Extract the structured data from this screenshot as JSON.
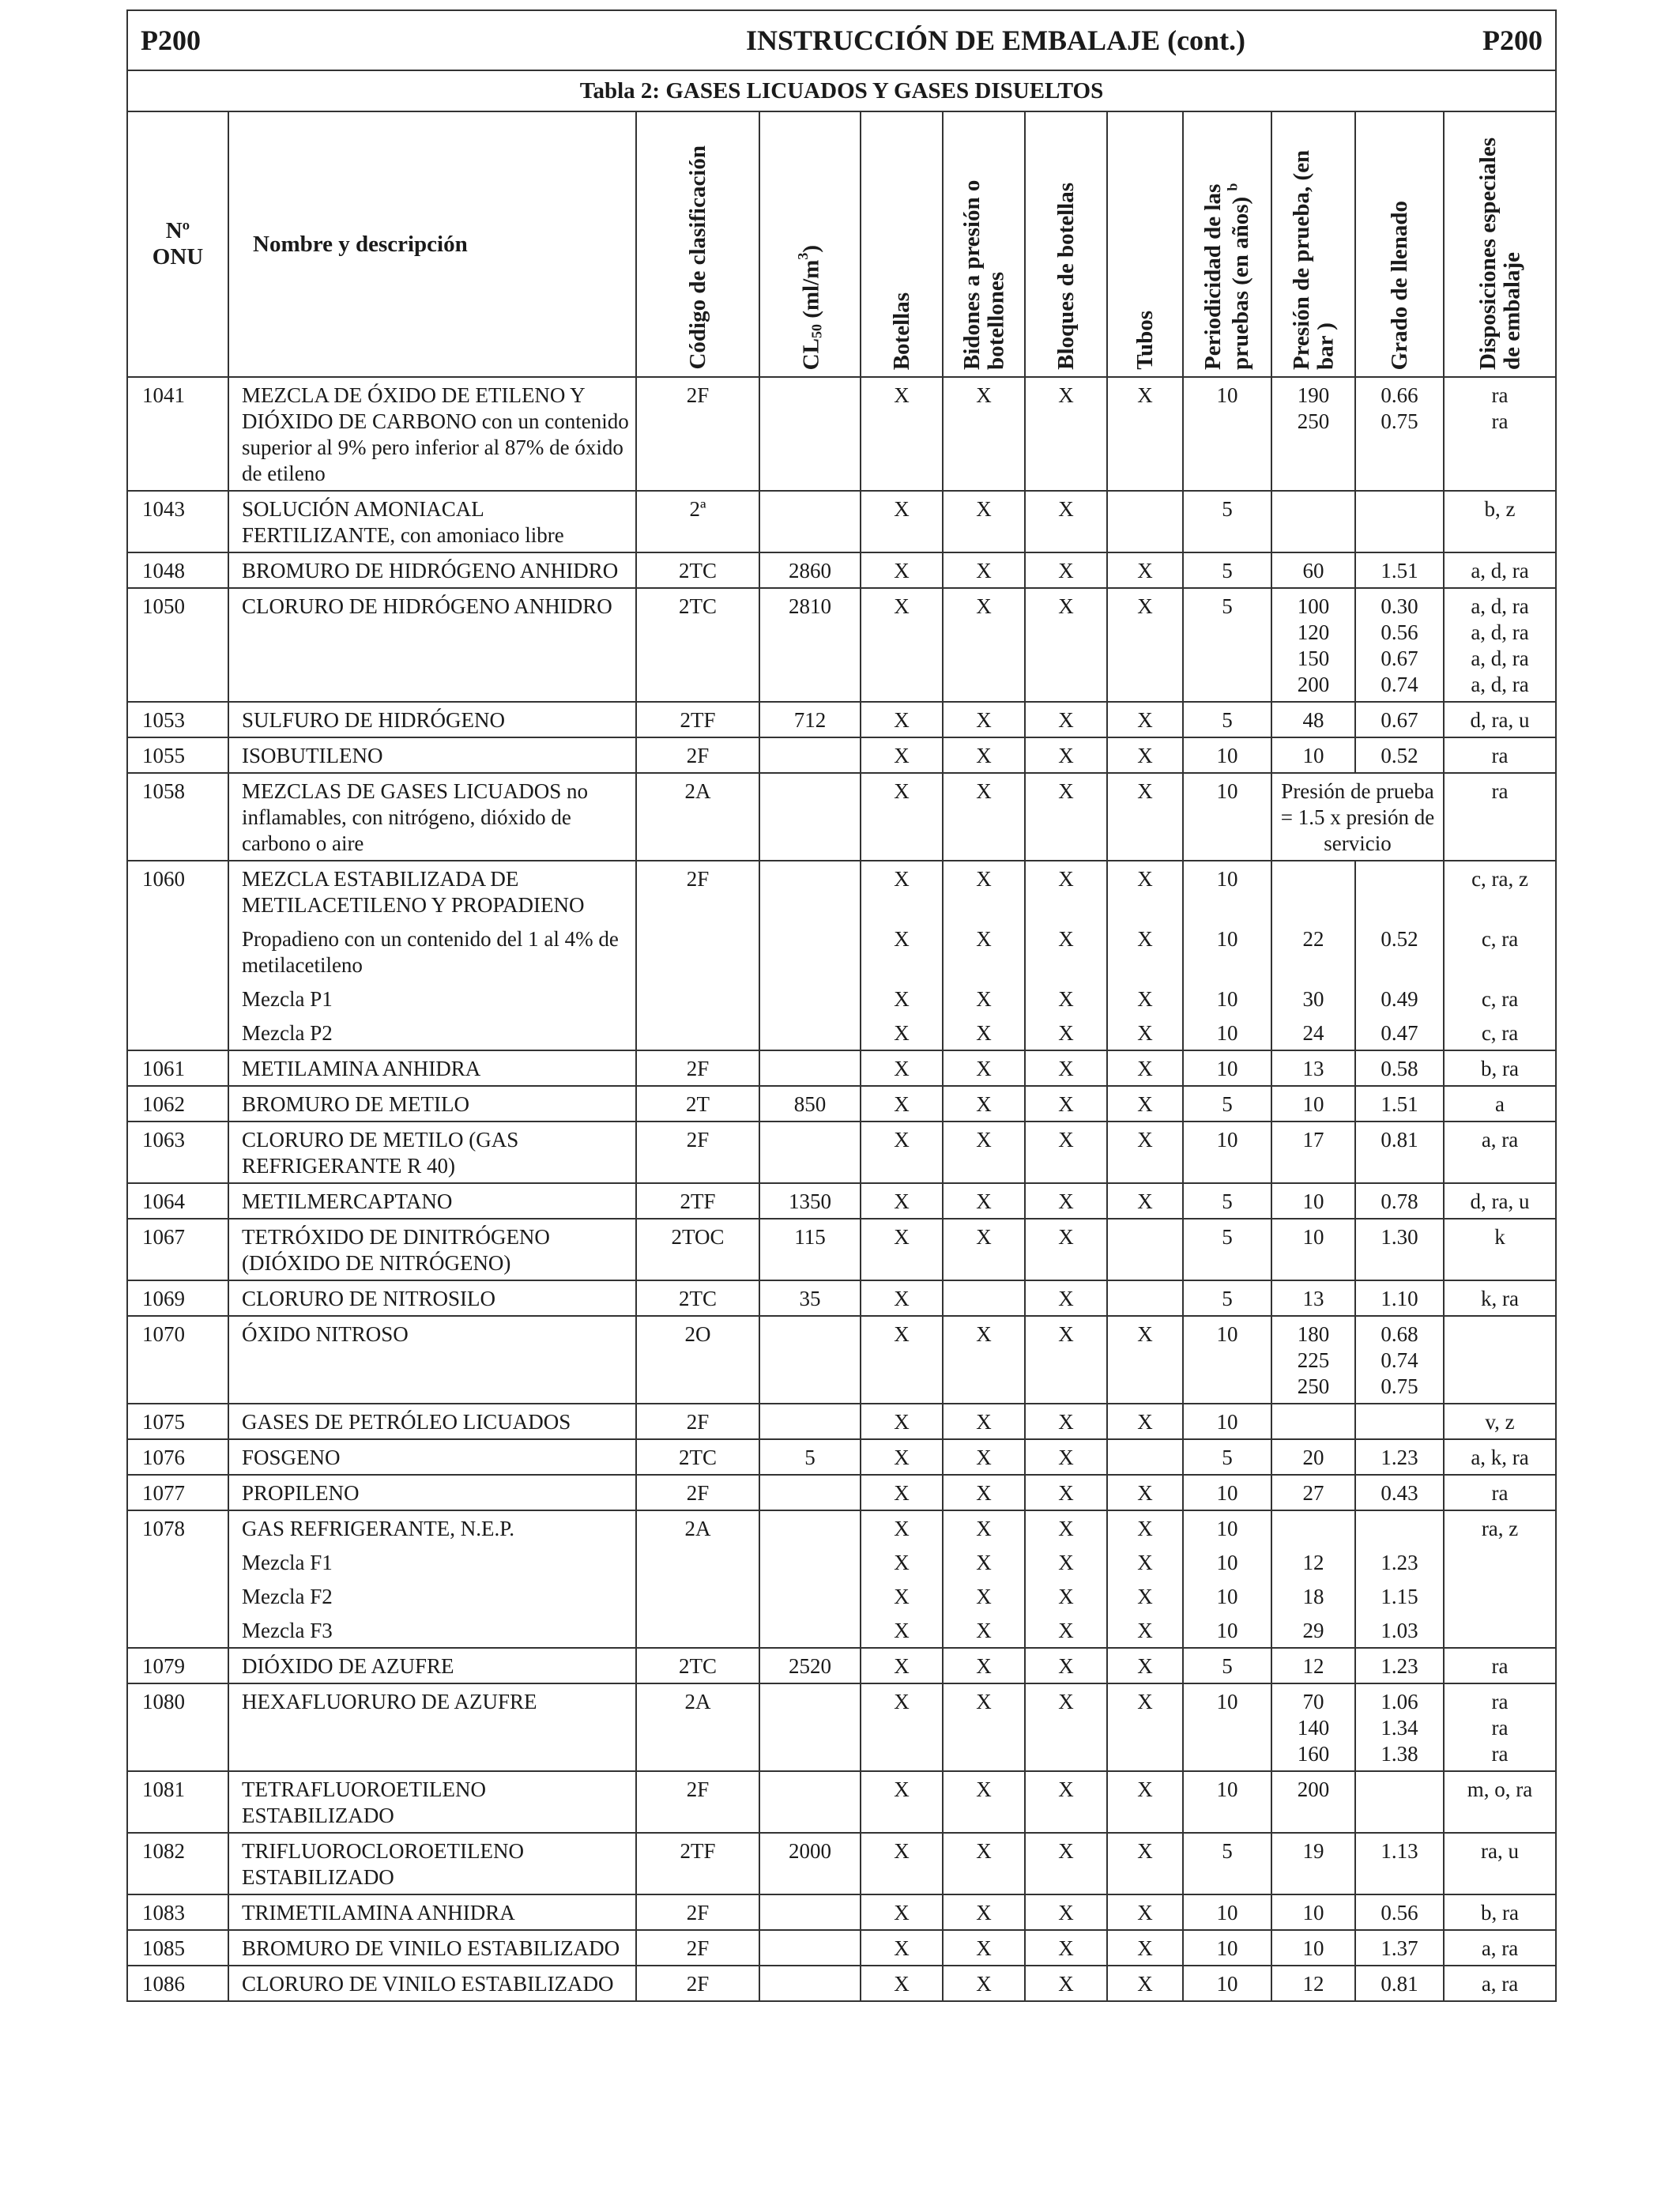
{
  "header": {
    "code_left": "P200",
    "title": "INSTRUCCIÓN DE EMBALAJE (cont.)",
    "code_right": "P200",
    "table_title": "Tabla 2: GASES LICUADOS Y GASES DISUELTOS"
  },
  "columns": {
    "un": "Nº ONU",
    "name": "Nombre y descripción",
    "class_code": "Código de clasificación",
    "cl50": "CL50 (ml/m3)",
    "botellas": "Botellas",
    "bidones": "Bidones a presión o botellones",
    "bloques": "Bloques de botellas",
    "tubos": "Tubos",
    "periodicidad": "Periodicidad de las pruebas (en años) b",
    "presion": "Presión de prueba, (en bar )",
    "grado": "Grado de llenado",
    "disposiciones": "Disposiciones especiales de embalaje"
  },
  "rows": [
    {
      "un": "1041",
      "name": [
        "MEZCLA DE ÓXIDO DE ETILENO Y DIÓXIDO DE CARBONO con un contenido superior al 9% pero inferior al 87% de óxido de etileno"
      ],
      "code": "2F",
      "cl50": "",
      "botellas": "X",
      "bidones": "X",
      "bloques": "X",
      "tubos": "X",
      "period": "10",
      "presion": [
        "190",
        "250"
      ],
      "grado": [
        "0.66",
        "0.75"
      ],
      "disp": [
        "ra",
        "ra"
      ]
    },
    {
      "un": "1043",
      "name": [
        "SOLUCIÓN AMONIACAL FERTILIZANTE, con amoniaco libre"
      ],
      "code": "2ª",
      "cl50": "",
      "botellas": "X",
      "bidones": "X",
      "bloques": "X",
      "tubos": "",
      "period": "5",
      "presion": [
        ""
      ],
      "grado": [
        ""
      ],
      "disp": [
        "b, z"
      ]
    },
    {
      "un": "1048",
      "name": [
        "BROMURO DE HIDRÓGENO ANHIDRO"
      ],
      "code": "2TC",
      "cl50": "2860",
      "botellas": "X",
      "bidones": "X",
      "bloques": "X",
      "tubos": "X",
      "period": "5",
      "presion": [
        "60"
      ],
      "grado": [
        "1.51"
      ],
      "disp": [
        "a, d, ra"
      ]
    },
    {
      "un": "1050",
      "name": [
        "CLORURO DE HIDRÓGENO ANHIDRO"
      ],
      "code": "2TC",
      "cl50": "2810",
      "botellas": "X",
      "bidones": "X",
      "bloques": "X",
      "tubos": "X",
      "period": "5",
      "presion": [
        "100",
        "120",
        "150",
        "200"
      ],
      "grado": [
        "0.30",
        "0.56",
        "0.67",
        "0.74"
      ],
      "disp": [
        "a, d, ra",
        "a, d, ra",
        "a, d, ra",
        "a, d, ra"
      ]
    },
    {
      "un": "1053",
      "name": [
        "SULFURO DE HIDRÓGENO"
      ],
      "code": "2TF",
      "cl50": "712",
      "botellas": "X",
      "bidones": "X",
      "bloques": "X",
      "tubos": "X",
      "period": "5",
      "presion": [
        "48"
      ],
      "grado": [
        "0.67"
      ],
      "disp": [
        "d, ra, u"
      ]
    },
    {
      "un": "1055",
      "name": [
        "ISOBUTILENO"
      ],
      "code": "2F",
      "cl50": "",
      "botellas": "X",
      "bidones": "X",
      "bloques": "X",
      "tubos": "X",
      "period": "10",
      "presion": [
        "10"
      ],
      "grado": [
        "0.52"
      ],
      "disp": [
        "ra"
      ]
    },
    {
      "un": "1058",
      "name": [
        "MEZCLAS DE GASES LICUADOS no inflamables, con nitrógeno, dióxido de carbono o aire"
      ],
      "code": "2A",
      "cl50": "",
      "botellas": "X",
      "bidones": "X",
      "bloques": "X",
      "tubos": "X",
      "period": "10",
      "merged": "Presión de prueba = 1.5 x presión de servicio",
      "disp": [
        "ra"
      ]
    },
    {
      "un": "1061",
      "name": [
        "METILAMINA ANHIDRA"
      ],
      "code": "2F",
      "cl50": "",
      "botellas": "X",
      "bidones": "X",
      "bloques": "X",
      "tubos": "X",
      "period": "10",
      "presion": [
        "13"
      ],
      "grado": [
        "0.58"
      ],
      "disp": [
        "b, ra"
      ]
    },
    {
      "un": "1062",
      "name": [
        "BROMURO DE METILO"
      ],
      "code": "2T",
      "cl50": "850",
      "botellas": "X",
      "bidones": "X",
      "bloques": "X",
      "tubos": "X",
      "period": "5",
      "presion": [
        "10"
      ],
      "grado": [
        "1.51"
      ],
      "disp": [
        "a"
      ]
    },
    {
      "un": "1063",
      "name": [
        "CLORURO DE METILO (GAS REFRIGERANTE R 40)"
      ],
      "code": "2F",
      "cl50": "",
      "botellas": "X",
      "bidones": "X",
      "bloques": "X",
      "tubos": "X",
      "period": "10",
      "presion": [
        "17"
      ],
      "grado": [
        "0.81"
      ],
      "disp": [
        "a, ra"
      ]
    },
    {
      "un": "1064",
      "name": [
        "METILMERCAPTANO"
      ],
      "code": "2TF",
      "cl50": "1350",
      "botellas": "X",
      "bidones": "X",
      "bloques": "X",
      "tubos": "X",
      "period": "5",
      "presion": [
        "10"
      ],
      "grado": [
        "0.78"
      ],
      "disp": [
        "d, ra, u"
      ]
    },
    {
      "un": "1067",
      "name": [
        "TETRÓXIDO DE DINITRÓGENO (DIÓXIDO DE NITRÓGENO)"
      ],
      "code": "2TOC",
      "cl50": "115",
      "botellas": "X",
      "bidones": "X",
      "bloques": "X",
      "tubos": "",
      "period": "5",
      "presion": [
        "10"
      ],
      "grado": [
        "1.30"
      ],
      "disp": [
        "k"
      ]
    },
    {
      "un": "1069",
      "name": [
        "CLORURO DE NITROSILO"
      ],
      "code": "2TC",
      "cl50": "35",
      "botellas": "X",
      "bidones": "",
      "bloques": "X",
      "tubos": "",
      "period": "5",
      "presion": [
        "13"
      ],
      "grado": [
        "1.10"
      ],
      "disp": [
        "k, ra"
      ]
    },
    {
      "un": "1070",
      "name": [
        "ÓXIDO NITROSO"
      ],
      "code": "2O",
      "cl50": "",
      "botellas": "X",
      "bidones": "X",
      "bloques": "X",
      "tubos": "X",
      "period": "10",
      "presion": [
        "180",
        "225",
        "250"
      ],
      "grado": [
        "0.68",
        "0.74",
        "0.75"
      ],
      "disp": [
        ""
      ]
    },
    {
      "un": "1075",
      "name": [
        "GASES DE PETRÓLEO LICUADOS"
      ],
      "code": "2F",
      "cl50": "",
      "botellas": "X",
      "bidones": "X",
      "bloques": "X",
      "tubos": "X",
      "period": "10",
      "presion": [
        ""
      ],
      "grado": [
        ""
      ],
      "disp": [
        "v, z"
      ]
    },
    {
      "un": "1076",
      "name": [
        "FOSGENO"
      ],
      "code": "2TC",
      "cl50": "5",
      "botellas": "X",
      "bidones": "X",
      "bloques": "X",
      "tubos": "",
      "period": "5",
      "presion": [
        "20"
      ],
      "grado": [
        "1.23"
      ],
      "disp": [
        "a, k, ra"
      ]
    },
    {
      "un": "1077",
      "name": [
        "PROPILENO"
      ],
      "code": "2F",
      "cl50": "",
      "botellas": "X",
      "bidones": "X",
      "bloques": "X",
      "tubos": "X",
      "period": "10",
      "presion": [
        "27"
      ],
      "grado": [
        "0.43"
      ],
      "disp": [
        "ra"
      ]
    },
    {
      "un": "1079",
      "name": [
        "DIÓXIDO DE AZUFRE"
      ],
      "code": "2TC",
      "cl50": "2520",
      "botellas": "X",
      "bidones": "X",
      "bloques": "X",
      "tubos": "X",
      "period": "5",
      "presion": [
        "12"
      ],
      "grado": [
        "1.23"
      ],
      "disp": [
        "ra"
      ]
    },
    {
      "un": "1080",
      "name": [
        "HEXAFLUORURO DE AZUFRE"
      ],
      "code": "2A",
      "cl50": "",
      "botellas": "X",
      "bidones": "X",
      "bloques": "X",
      "tubos": "X",
      "period": "10",
      "presion": [
        "70",
        "140",
        "160"
      ],
      "grado": [
        "1.06",
        "1.34",
        "1.38"
      ],
      "disp": [
        "ra",
        "ra",
        "ra"
      ]
    },
    {
      "un": "1081",
      "name": [
        "TETRAFLUOROETILENO ESTABILIZADO"
      ],
      "code": "2F",
      "cl50": "",
      "botellas": "X",
      "bidones": "X",
      "bloques": "X",
      "tubos": "X",
      "period": "10",
      "presion": [
        "200"
      ],
      "grado": [
        ""
      ],
      "disp": [
        "m, o, ra"
      ]
    },
    {
      "un": "1082",
      "name": [
        "TRIFLUOROCLOROETILENO ESTABILIZADO"
      ],
      "code": "2TF",
      "cl50": "2000",
      "botellas": "X",
      "bidones": "X",
      "bloques": "X",
      "tubos": "X",
      "period": "5",
      "presion": [
        "19"
      ],
      "grado": [
        "1.13"
      ],
      "disp": [
        "ra, u"
      ]
    },
    {
      "un": "1083",
      "name": [
        "TRIMETILAMINA ANHIDRA"
      ],
      "code": "2F",
      "cl50": "",
      "botellas": "X",
      "bidones": "X",
      "bloques": "X",
      "tubos": "X",
      "period": "10",
      "presion": [
        "10"
      ],
      "grado": [
        "0.56"
      ],
      "disp": [
        "b, ra"
      ]
    },
    {
      "un": "1085",
      "name": [
        "BROMURO DE VINILO ESTABILIZADO"
      ],
      "code": "2F",
      "cl50": "",
      "botellas": "X",
      "bidones": "X",
      "bloques": "X",
      "tubos": "X",
      "period": "10",
      "presion": [
        "10"
      ],
      "grado": [
        "1.37"
      ],
      "disp": [
        "a, ra"
      ]
    },
    {
      "un": "1086",
      "name": [
        "CLORURO DE VINILO ESTABILIZADO"
      ],
      "code": "2F",
      "cl50": "",
      "botellas": "X",
      "bidones": "X",
      "bloques": "X",
      "tubos": "X",
      "period": "10",
      "presion": [
        "12"
      ],
      "grado": [
        "0.81"
      ],
      "disp": [
        "a, ra"
      ]
    }
  ],
  "row_1060": {
    "un": "1060",
    "code": "2F",
    "items": [
      {
        "name": "MEZCLA ESTABILIZADA DE METILACETILENO Y PROPADIENO",
        "botellas": "X",
        "bidones": "X",
        "bloques": "X",
        "tubos": "X",
        "period": "10",
        "presion": "",
        "grado": "",
        "disp": "c, ra, z"
      },
      {
        "name": "Propadieno con un contenido del 1 al 4% de metilacetileno",
        "botellas": "X",
        "bidones": "X",
        "bloques": "X",
        "tubos": "X",
        "period": "10",
        "presion": "22",
        "grado": "0.52",
        "disp": "c, ra"
      },
      {
        "name": "Mezcla P1",
        "botellas": "X",
        "bidones": "X",
        "bloques": "X",
        "tubos": "X",
        "period": "10",
        "presion": "30",
        "grado": "0.49",
        "disp": "c, ra"
      },
      {
        "name": "Mezcla P2",
        "botellas": "X",
        "bidones": "X",
        "bloques": "X",
        "tubos": "X",
        "period": "10",
        "presion": "24",
        "grado": "0.47",
        "disp": "c, ra"
      }
    ]
  },
  "row_1078": {
    "un": "1078",
    "code": "2A",
    "items": [
      {
        "name": "GAS REFRIGERANTE, N.E.P.",
        "botellas": "X",
        "bidones": "X",
        "bloques": "X",
        "tubos": "X",
        "period": "10",
        "presion": "",
        "grado": "",
        "disp": "ra, z"
      },
      {
        "name": "Mezcla F1",
        "botellas": "X",
        "bidones": "X",
        "bloques": "X",
        "tubos": "X",
        "period": "10",
        "presion": "12",
        "grado": "1.23",
        "disp": ""
      },
      {
        "name": "Mezcla F2",
        "botellas": "X",
        "bidones": "X",
        "bloques": "X",
        "tubos": "X",
        "period": "10",
        "presion": "18",
        "grado": "1.15",
        "disp": ""
      },
      {
        "name": "Mezcla F3",
        "botellas": "X",
        "bidones": "X",
        "bloques": "X",
        "tubos": "X",
        "period": "10",
        "presion": "29",
        "grado": "1.03",
        "disp": ""
      }
    ]
  }
}
